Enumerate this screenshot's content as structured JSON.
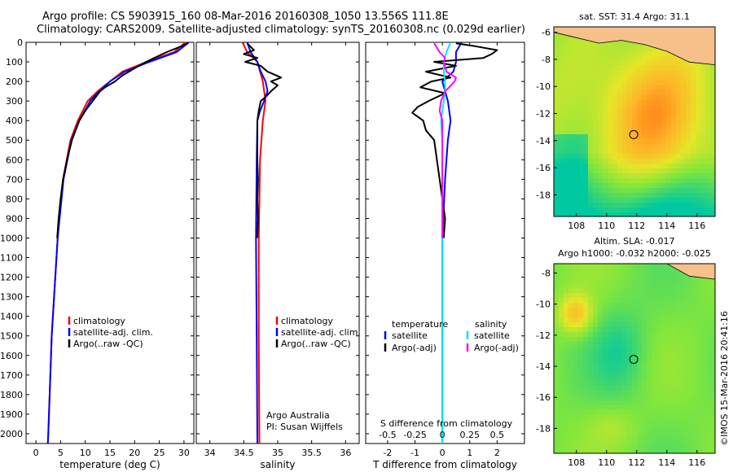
{
  "header": {
    "line1": "Argo profile: CS 5903915_160 08-Mar-2016 20160308_1050 13.556S 111.8E",
    "line2": "Climatology: CARS2009. Satellite-adjusted climatology: synTS_20160308.nc (0.029d earlier)"
  },
  "footer": {
    "stamp": "©IMOS 15-Mar-2016 20:41:16"
  },
  "colors": {
    "climatology": "#ff0000",
    "satellite": "#0000ff",
    "argo": "#000000",
    "salinity_sat": "#00e5ee",
    "salinity_argo": "#ff00ff"
  },
  "chart_data": [
    {
      "type": "line",
      "xlabel": "temperature (deg C)",
      "xlim": [
        -2,
        32
      ],
      "xticks": [
        0,
        5,
        10,
        15,
        20,
        25,
        30
      ],
      "ylim": [
        2050,
        0
      ],
      "yticks": [
        0,
        100,
        200,
        300,
        400,
        500,
        600,
        700,
        800,
        900,
        1000,
        1100,
        1200,
        1300,
        1400,
        1500,
        1600,
        1700,
        1800,
        1900,
        2000
      ],
      "legend": [
        "climatology",
        "satellite-adj. clim.",
        "Argo(..raw -QC)"
      ],
      "series": [
        {
          "name": "climatology",
          "depth": [
            0,
            50,
            100,
            150,
            200,
            250,
            300,
            400,
            500,
            700,
            1000,
            1500,
            2000,
            2050
          ],
          "values": [
            30.3,
            28,
            22.5,
            17.5,
            15,
            12.5,
            10.5,
            8.5,
            7,
            5.5,
            4.4,
            3.2,
            2.5,
            2.4
          ]
        },
        {
          "name": "satellite-adj. clim.",
          "depth": [
            0,
            50,
            100,
            150,
            200,
            250,
            300,
            400,
            500,
            700,
            1000,
            1500,
            2000,
            2050
          ],
          "values": [
            31,
            28.5,
            23,
            18,
            15,
            12.8,
            11,
            8.8,
            7.2,
            5.6,
            4.4,
            3.2,
            2.5,
            2.4
          ]
        },
        {
          "name": "Argo(..raw -QC)",
          "depth": [
            5,
            20,
            50,
            80,
            110,
            140,
            170,
            200,
            230,
            250,
            300,
            350,
            400,
            500,
            600,
            700,
            800,
            900,
            1000
          ],
          "values": [
            30.8,
            29.5,
            26.5,
            24,
            21.5,
            19.5,
            17.5,
            16,
            14,
            13,
            11.5,
            10,
            8.8,
            7.3,
            6.3,
            5.5,
            5,
            4.6,
            4.3
          ]
        }
      ]
    },
    {
      "type": "line",
      "xlabel": "salinity",
      "xlim": [
        33.8,
        36.2
      ],
      "xticks": [
        34,
        34.5,
        35,
        35.5,
        36
      ],
      "ylim": [
        2050,
        0
      ],
      "legend": [
        "climatology",
        "satellite-adj. clim.",
        "Argo(..raw -QC)"
      ],
      "annotation": [
        "Argo Australia",
        "PI: Susan Wijffels"
      ],
      "series": [
        {
          "name": "climatology",
          "depth": [
            0,
            50,
            100,
            200,
            300,
            400,
            600,
            1000,
            1500,
            2050
          ],
          "values": [
            34.48,
            34.55,
            34.7,
            34.78,
            34.82,
            34.78,
            34.74,
            34.72,
            34.72,
            34.73
          ]
        },
        {
          "name": "satellite-adj. clim.",
          "depth": [
            0,
            50,
            100,
            150,
            200,
            250,
            300,
            350,
            400,
            600,
            1000,
            1500,
            2050
          ],
          "values": [
            34.55,
            34.6,
            34.7,
            34.75,
            34.82,
            34.85,
            34.8,
            34.74,
            34.7,
            34.69,
            34.68,
            34.69,
            34.7
          ]
        },
        {
          "name": "Argo(..raw -QC)",
          "depth": [
            5,
            40,
            60,
            80,
            100,
            120,
            150,
            180,
            200,
            220,
            250,
            280,
            300,
            350,
            400,
            500,
            600,
            700,
            800,
            900,
            1000
          ],
          "values": [
            34.55,
            34.65,
            34.5,
            34.7,
            34.52,
            34.75,
            34.85,
            35.05,
            34.9,
            35,
            34.9,
            34.82,
            34.75,
            34.72,
            34.7,
            34.7,
            34.7,
            34.71,
            34.7,
            34.71,
            34.7
          ]
        }
      ]
    },
    {
      "type": "line",
      "xlabel": "T difference from climatology",
      "xlabel_top": "S difference from climatology",
      "xlim": [
        -2.8,
        3
      ],
      "xticks": [
        -2,
        -1,
        0,
        1,
        2
      ],
      "xticks_top": [
        "-0.5",
        "-0.25",
        "0",
        "0.25",
        "0.5"
      ],
      "ylim": [
        2050,
        0
      ],
      "legend_temperature": [
        "temperature",
        "satellite",
        "Argo(-adj)"
      ],
      "legend_salinity": [
        "salinity",
        "satellite",
        "Argo(-adj)"
      ],
      "series": [
        {
          "name": "temperature satellite",
          "depth": [
            0,
            50,
            100,
            150,
            200,
            300,
            400,
            500,
            700,
            1000,
            1500,
            2050
          ],
          "values": [
            0.7,
            0.5,
            0.5,
            0.4,
            0,
            0.2,
            0.3,
            0.2,
            0.1,
            0,
            0,
            0
          ]
        },
        {
          "name": "temperature Argo(-adj)",
          "depth": [
            5,
            20,
            40,
            60,
            80,
            100,
            120,
            150,
            180,
            200,
            230,
            260,
            300,
            330,
            360,
            400,
            450,
            500,
            600,
            700,
            800,
            900,
            1000
          ],
          "values": [
            0.5,
            1.2,
            2,
            1.8,
            1.5,
            -0.3,
            0.5,
            -0.6,
            0.3,
            -0.4,
            -0.8,
            0.1,
            -0.5,
            -0.9,
            -1.1,
            -0.7,
            -0.6,
            -0.3,
            -0.2,
            -0.1,
            0,
            0.1,
            0.05
          ]
        },
        {
          "name": "salinity satellite",
          "depth": [
            0,
            50,
            100,
            150,
            200,
            250,
            300,
            400,
            500,
            700,
            1000,
            1500,
            2050
          ],
          "values": [
            0.3,
            0.15,
            0.05,
            0.05,
            0.1,
            0.1,
            0.05,
            -0.05,
            0,
            0,
            0,
            0,
            0
          ]
        },
        {
          "name": "salinity Argo(-adj)",
          "depth": [
            5,
            50,
            80,
            100,
            150,
            180,
            200,
            230,
            250,
            300,
            350,
            400,
            500,
            700,
            1000
          ],
          "values": [
            -0.3,
            -0.1,
            0.1,
            0.05,
            0.15,
            0.5,
            0.45,
            0.25,
            0.1,
            -0.05,
            -0.1,
            0,
            0,
            0,
            0
          ]
        }
      ]
    },
    {
      "type": "heatmap",
      "title": "sat. SST: 31.4 Argo: 31.1",
      "xticks": [
        108,
        110,
        112,
        114,
        116
      ],
      "yticks": [
        -6,
        -8,
        -10,
        -12,
        -14,
        -16,
        -18
      ],
      "xlim": [
        106.5,
        117.2
      ],
      "ylim": [
        -19.6,
        -5.6
      ],
      "marker": {
        "lon": 111.8,
        "lat": -13.556
      }
    },
    {
      "type": "heatmap",
      "title": "Altim. SLA: -0.017",
      "subtitle": "Argo h1000: -0.032 h2000: -0.025",
      "xticks": [
        108,
        110,
        112,
        114,
        116
      ],
      "yticks": [
        -8,
        -10,
        -12,
        -14,
        -16,
        -18
      ],
      "xlim": [
        106.5,
        117.2
      ],
      "ylim": [
        -19.6,
        -7.4
      ],
      "marker": {
        "lon": 111.8,
        "lat": -13.556
      }
    }
  ]
}
